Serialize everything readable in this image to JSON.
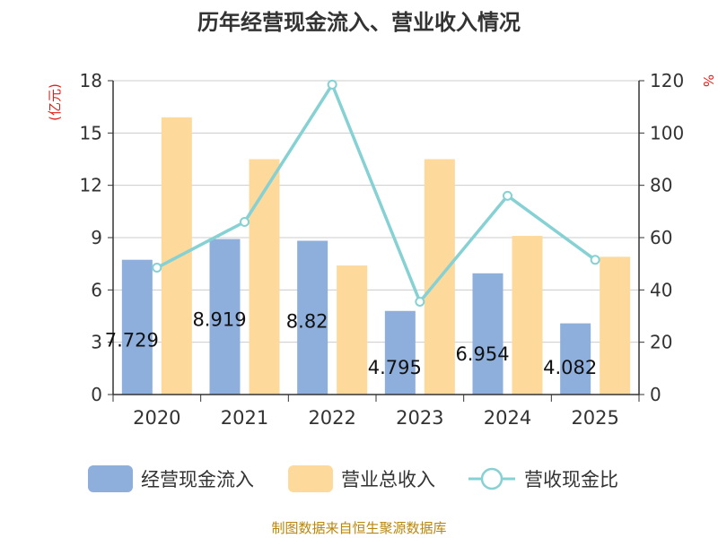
{
  "chart_data": {
    "type": "bar",
    "title": "历年经营现金流入、营业收入情况",
    "categories": [
      "2020",
      "2021",
      "2022",
      "2023",
      "2024",
      "2025"
    ],
    "series": [
      {
        "name": "经营现金流入",
        "type": "bar",
        "axis": "left",
        "color": "#8eaedc",
        "values": [
          7.729,
          8.919,
          8.82,
          4.795,
          6.954,
          4.082
        ],
        "labels": [
          "7.729",
          "8.919",
          "8.82",
          "4.795",
          "6.954",
          "4.082"
        ]
      },
      {
        "name": "营业总收入",
        "type": "bar",
        "axis": "left",
        "color": "#fdd99c",
        "values": [
          15.9,
          13.5,
          7.4,
          13.5,
          9.1,
          7.9
        ]
      },
      {
        "name": "营收现金比",
        "type": "line",
        "axis": "right",
        "color": "#86d1d4",
        "values": [
          48.5,
          66.0,
          118.5,
          35.5,
          76.0,
          51.5
        ]
      }
    ],
    "y_left": {
      "unit": "(亿元)",
      "min": 0,
      "max": 18,
      "ticks": [
        "0",
        "3",
        "6",
        "9",
        "12",
        "15",
        "18"
      ]
    },
    "y_right": {
      "unit": "%",
      "min": 0,
      "max": 120,
      "ticks": [
        "0",
        "20",
        "40",
        "60",
        "80",
        "100",
        "120"
      ]
    },
    "grid": true,
    "legend_position": "bottom",
    "source": "制图数据来自恒生聚源数据库"
  }
}
